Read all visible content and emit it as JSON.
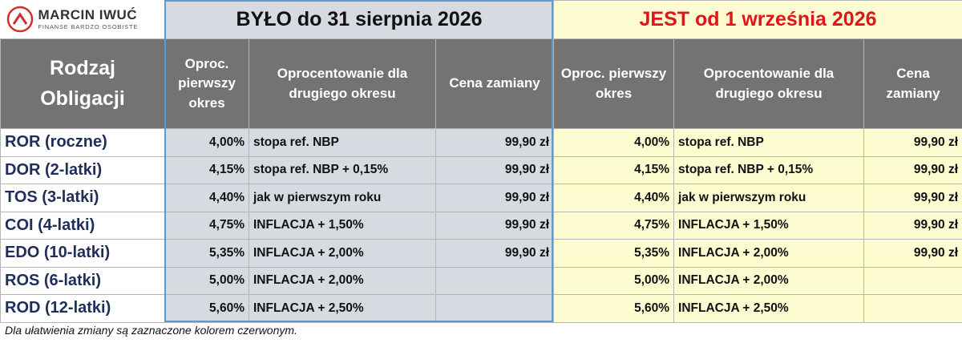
{
  "logo": {
    "name": "MARCIN IWUĆ",
    "tagline": "FINANSE BARDZO OSOBISTE"
  },
  "groups": {
    "before": "BYŁO do 31 sierpnia 2026",
    "after": "JEST od 1 września 2026"
  },
  "table": {
    "headers": [
      "Rodzaj Obligacji",
      "Oproc. pierwszy okres",
      "Oprocentowanie dla drugiego okresu",
      "Cena zamiany",
      "Oproc. pierwszy okres",
      "Oprocentowanie dla drugiego okresu",
      "Cena zamiany"
    ],
    "rows": [
      [
        "ROR (roczne)",
        "4,00%",
        "stopa ref. NBP",
        "99,90 zł",
        "4,00%",
        "stopa ref. NBP",
        "99,90 zł"
      ],
      [
        "DOR (2-latki)",
        "4,15%",
        "stopa ref. NBP + 0,15%",
        "99,90 zł",
        "4,15%",
        "stopa ref. NBP + 0,15%",
        "99,90 zł"
      ],
      [
        "TOS (3-latki)",
        "4,40%",
        "jak w pierwszym roku",
        "99,90 zł",
        "4,40%",
        "jak w pierwszym roku",
        "99,90 zł"
      ],
      [
        "COI (4-latki)",
        "4,75%",
        "INFLACJA + 1,50%",
        "99,90 zł",
        "4,75%",
        "INFLACJA + 1,50%",
        "99,90 zł"
      ],
      [
        "EDO (10-latki)",
        "5,35%",
        "INFLACJA + 2,00%",
        "99,90 zł",
        "5,35%",
        "INFLACJA + 2,00%",
        "99,90 zł"
      ],
      [
        "ROS (6-latki)",
        "5,00%",
        "INFLACJA + 2,00%",
        null,
        "5,00%",
        "INFLACJA + 2,00%",
        null
      ],
      [
        "ROD (12-latki)",
        "5,60%",
        "INFLACJA + 2,50%",
        null,
        "5,60%",
        "INFLACJA + 2,50%",
        null
      ]
    ]
  },
  "footnote": "Dla ułatwienia zmiany są zaznaczone kolorem czerwonym."
}
